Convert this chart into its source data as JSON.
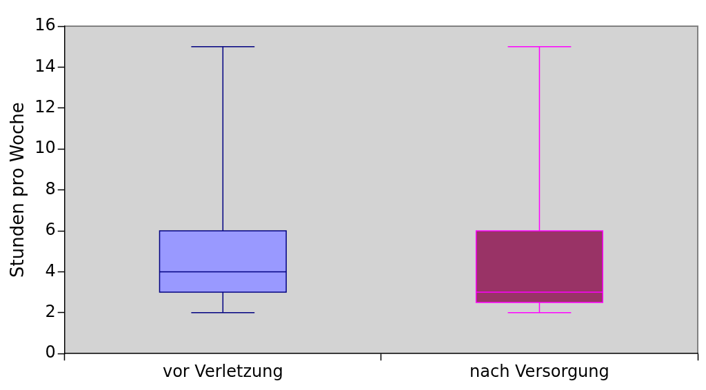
{
  "chart_data": {
    "type": "box",
    "ylabel": "Stunden pro Woche",
    "categories": [
      "vor Verletzung",
      "nach Versorgung"
    ],
    "boxes": [
      {
        "low": 2,
        "q1": 3,
        "median": 4,
        "q3": 6,
        "high": 15
      },
      {
        "low": 2,
        "q1": 2.5,
        "median": 3,
        "q3": 6,
        "high": 15
      }
    ],
    "colors": [
      "#9999ff",
      "#993366"
    ],
    "ylim": [
      0,
      16
    ],
    "yticks": [
      0,
      2,
      4,
      6,
      8,
      10,
      12,
      14,
      16
    ],
    "grid": false,
    "legend": false
  }
}
